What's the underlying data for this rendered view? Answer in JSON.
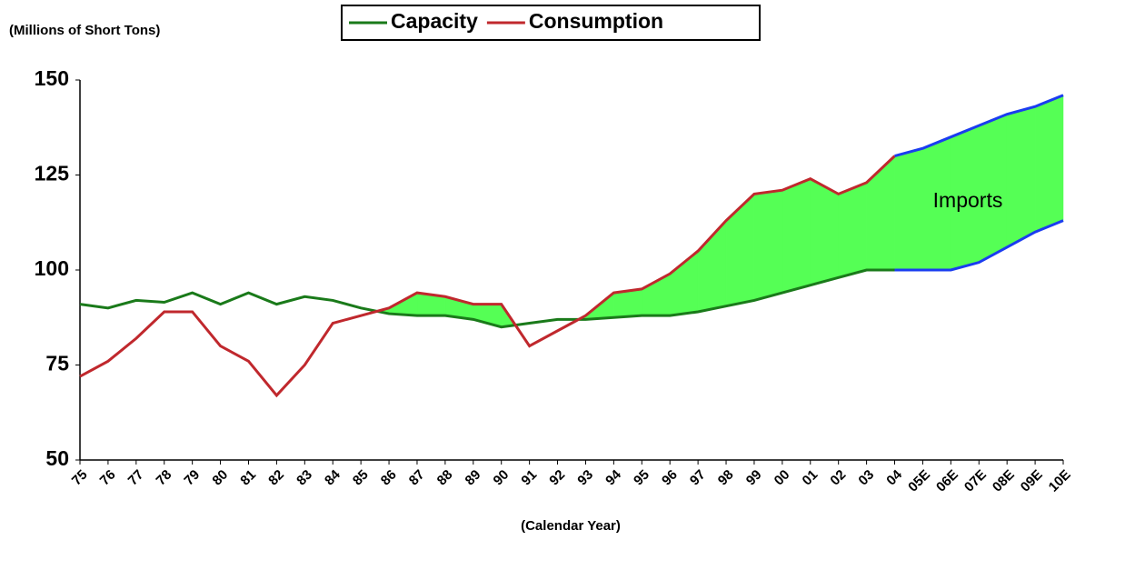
{
  "chart_data": {
    "type": "line",
    "y_label": "(Millions of Short Tons)",
    "x_label": "(Calendar Year)",
    "annotation": "Imports",
    "categories": [
      "75",
      "76",
      "77",
      "78",
      "79",
      "80",
      "81",
      "82",
      "83",
      "84",
      "85",
      "86",
      "87",
      "88",
      "89",
      "90",
      "91",
      "92",
      "93",
      "94",
      "95",
      "96",
      "97",
      "98",
      "99",
      "00",
      "01",
      "02",
      "03",
      "04",
      "05E",
      "06E",
      "07E",
      "08E",
      "09E",
      "10E"
    ],
    "series": [
      {
        "name": "Capacity",
        "color": "#1a7a1a",
        "values": [
          91,
          90,
          92,
          91.5,
          94,
          91,
          94,
          91,
          93,
          92,
          90,
          88.5,
          88,
          88,
          87,
          85,
          86,
          87,
          87,
          87.5,
          88,
          88,
          89,
          90.5,
          92,
          94,
          96,
          98,
          100,
          100,
          100,
          100,
          102,
          106,
          110,
          113
        ]
      },
      {
        "name": "Consumption",
        "color": "#c0282d",
        "values": [
          72,
          76,
          82,
          89,
          89,
          80,
          76,
          67,
          75,
          86,
          88,
          90,
          94,
          93,
          91,
          91,
          80,
          84,
          88,
          94,
          95,
          99,
          105,
          113,
          120,
          121,
          124,
          120,
          123,
          130,
          132,
          135,
          138,
          141,
          143,
          146
        ]
      }
    ],
    "forecast": {
      "from": "04",
      "color": "#1a3cf0"
    },
    "fill_color": "#55ff55",
    "ylim": [
      50,
      150
    ],
    "yticks": [
      50,
      75,
      100,
      125,
      150
    ]
  }
}
